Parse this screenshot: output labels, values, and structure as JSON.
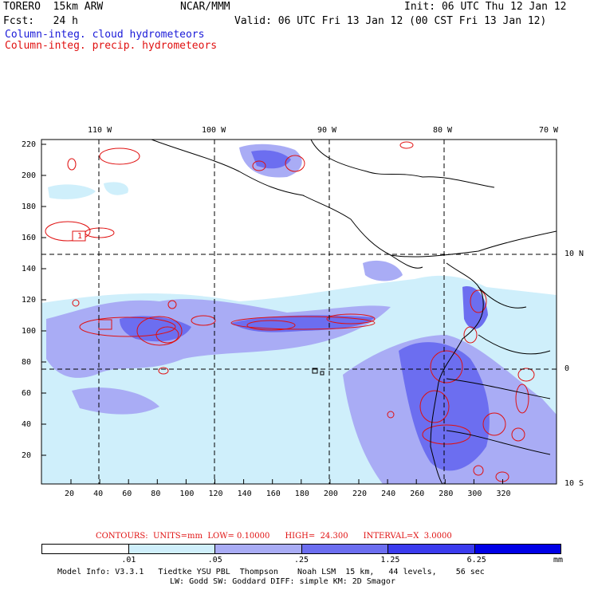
{
  "header": {
    "model": "TORERO  15km ARW",
    "center": "NCAR/MMM",
    "init": "Init: 06 UTC Thu 12 Jan 12",
    "fcst": "Fcst:   24 h",
    "valid": "Valid: 06 UTC Fri 13 Jan 12 (00 CST Fri 13 Jan 12)",
    "legend_cloud": "Column-integ. cloud hydrometeors",
    "legend_precip": "Column-integ. precip. hydrometeors"
  },
  "map": {
    "top_labels": [
      "110 W",
      "100 W",
      "90 W",
      "80 W",
      "70 W"
    ],
    "right_labels": [
      "10 N",
      "0",
      "10 S"
    ],
    "y_ticks": [
      "220",
      "200",
      "180",
      "160",
      "140",
      "120",
      "100",
      "80",
      "60",
      "40",
      "20"
    ],
    "x_ticks": [
      "20",
      "40",
      "60",
      "80",
      "100",
      "120",
      "140",
      "160",
      "180",
      "200",
      "220",
      "240",
      "260",
      "280",
      "300",
      "320"
    ],
    "contour_label": "1",
    "colors": {
      "cloud_light": "#cfeffb",
      "cloud_mid": "#a9acf5",
      "cloud_dark": "#6c6ef0",
      "precip_contour": "#e01010",
      "coast": "#000000"
    }
  },
  "contours_line": {
    "label": "CONTOURS:  UNITS=mm  LOW= 0.10000      HIGH=  24.300      INTERVAL=X  3.0000"
  },
  "colorbar": {
    "ticks": [
      ".01",
      ".05",
      ".25",
      "1.25",
      "6.25"
    ],
    "units": "mm",
    "colors": [
      "#ffffff",
      "#cfeffb",
      "#a9acf5",
      "#6c6ef0",
      "#3b3bee",
      "#0000e6"
    ]
  },
  "footer": {
    "line1": "Model Info: V3.3.1   Tiedtke YSU PBL  Thompson    Noah LSM  15 km,   44 levels,    56 sec",
    "line2": "LW: Godd SW: Goddard DIFF: simple KM: 2D Smagor"
  }
}
